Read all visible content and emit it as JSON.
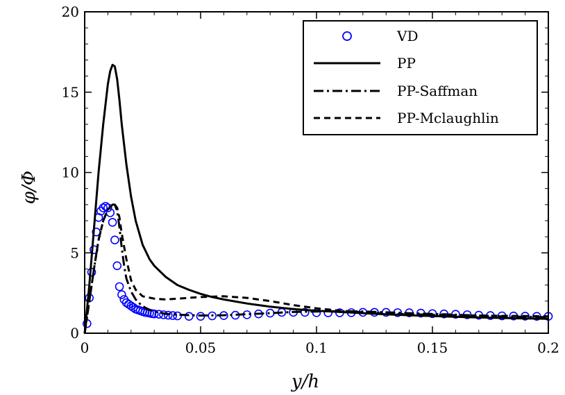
{
  "chart_data": {
    "type": "line",
    "title": "",
    "xlabel": "y/h",
    "ylabel": "φ/Φ",
    "xlim": [
      0,
      0.2
    ],
    "ylim": [
      0,
      20
    ],
    "x_ticks": [
      0,
      0.05,
      0.1,
      0.15,
      0.2
    ],
    "x_tick_labels": [
      "0",
      "0.05",
      "0.1",
      "0.15",
      "0.2"
    ],
    "y_ticks": [
      0,
      5,
      10,
      15,
      20
    ],
    "y_tick_labels": [
      "0",
      "5",
      "10",
      "15",
      "20"
    ],
    "grid": false,
    "legend_position": "top-right",
    "series": [
      {
        "name": "VD",
        "style": "markers-circle-open",
        "color": "#0000ff",
        "x": [
          0.001,
          0.002,
          0.003,
          0.004,
          0.005,
          0.006,
          0.007,
          0.008,
          0.009,
          0.01,
          0.011,
          0.012,
          0.013,
          0.014,
          0.015,
          0.016,
          0.017,
          0.018,
          0.019,
          0.02,
          0.021,
          0.022,
          0.023,
          0.024,
          0.025,
          0.026,
          0.027,
          0.028,
          0.029,
          0.03,
          0.032,
          0.034,
          0.036,
          0.038,
          0.04,
          0.045,
          0.05,
          0.055,
          0.06,
          0.065,
          0.07,
          0.075,
          0.08,
          0.085,
          0.09,
          0.095,
          0.1,
          0.105,
          0.11,
          0.115,
          0.12,
          0.125,
          0.13,
          0.135,
          0.14,
          0.145,
          0.15,
          0.155,
          0.16,
          0.165,
          0.17,
          0.175,
          0.18,
          0.185,
          0.19,
          0.195,
          0.2
        ],
        "y": [
          0.6,
          2.2,
          3.8,
          5.2,
          6.3,
          7.2,
          7.6,
          7.8,
          7.9,
          7.8,
          7.5,
          6.9,
          5.8,
          4.2,
          2.9,
          2.4,
          2.1,
          1.9,
          1.8,
          1.7,
          1.6,
          1.5,
          1.45,
          1.4,
          1.35,
          1.3,
          1.28,
          1.25,
          1.22,
          1.2,
          1.18,
          1.15,
          1.12,
          1.1,
          1.08,
          1.05,
          1.05,
          1.08,
          1.1,
          1.12,
          1.15,
          1.2,
          1.25,
          1.3,
          1.3,
          1.3,
          1.28,
          1.27,
          1.27,
          1.28,
          1.3,
          1.3,
          1.3,
          1.28,
          1.27,
          1.25,
          1.22,
          1.2,
          1.18,
          1.15,
          1.12,
          1.1,
          1.08,
          1.07,
          1.06,
          1.05,
          1.05
        ]
      },
      {
        "name": "PP",
        "style": "solid",
        "color": "#000000",
        "x": [
          0,
          0.002,
          0.004,
          0.006,
          0.008,
          0.01,
          0.011,
          0.012,
          0.013,
          0.014,
          0.015,
          0.016,
          0.018,
          0.02,
          0.022,
          0.025,
          0.028,
          0.03,
          0.035,
          0.04,
          0.045,
          0.05,
          0.055,
          0.06,
          0.07,
          0.08,
          0.09,
          0.1,
          0.11,
          0.12,
          0.13,
          0.14,
          0.15,
          0.16,
          0.17,
          0.18,
          0.19,
          0.2
        ],
        "y": [
          0,
          3.0,
          6.5,
          10.0,
          13.0,
          15.5,
          16.3,
          16.7,
          16.6,
          15.8,
          14.5,
          13.0,
          10.5,
          8.5,
          7.0,
          5.5,
          4.6,
          4.2,
          3.5,
          3.0,
          2.7,
          2.45,
          2.25,
          2.1,
          1.85,
          1.65,
          1.5,
          1.4,
          1.32,
          1.25,
          1.18,
          1.12,
          1.07,
          1.02,
          0.98,
          0.95,
          0.92,
          0.9
        ]
      },
      {
        "name": "PP-Saffman",
        "style": "dashdot",
        "color": "#000000",
        "x": [
          0,
          0.002,
          0.004,
          0.006,
          0.008,
          0.01,
          0.012,
          0.013,
          0.014,
          0.015,
          0.016,
          0.017,
          0.018,
          0.02,
          0.022,
          0.024,
          0.026,
          0.028,
          0.03,
          0.035,
          0.04,
          0.05,
          0.06,
          0.07,
          0.08,
          0.09,
          0.1,
          0.11,
          0.12,
          0.13,
          0.14,
          0.15,
          0.16,
          0.17,
          0.18,
          0.19,
          0.2
        ],
        "y": [
          0,
          2.0,
          4.0,
          5.8,
          7.0,
          7.7,
          8.0,
          8.0,
          7.6,
          6.6,
          5.3,
          4.2,
          3.4,
          2.6,
          2.1,
          1.8,
          1.6,
          1.45,
          1.35,
          1.2,
          1.15,
          1.1,
          1.12,
          1.18,
          1.25,
          1.32,
          1.35,
          1.37,
          1.35,
          1.3,
          1.25,
          1.2,
          1.15,
          1.1,
          1.05,
          1.02,
          1.0
        ]
      },
      {
        "name": "PP-Mclaughlin",
        "style": "dashed",
        "color": "#000000",
        "x": [
          0,
          0.002,
          0.004,
          0.006,
          0.008,
          0.01,
          0.012,
          0.013,
          0.014,
          0.015,
          0.016,
          0.018,
          0.02,
          0.022,
          0.025,
          0.03,
          0.035,
          0.04,
          0.05,
          0.06,
          0.07,
          0.08,
          0.09,
          0.1,
          0.11,
          0.12,
          0.13,
          0.14,
          0.15,
          0.16,
          0.17,
          0.18,
          0.19,
          0.2
        ],
        "y": [
          0,
          2.0,
          4.0,
          5.8,
          7.0,
          7.7,
          8.0,
          8.0,
          7.8,
          7.2,
          6.2,
          4.6,
          3.3,
          2.7,
          2.3,
          2.15,
          2.1,
          2.15,
          2.25,
          2.3,
          2.2,
          2.0,
          1.75,
          1.55,
          1.4,
          1.3,
          1.22,
          1.18,
          1.15,
          1.12,
          1.1,
          1.08,
          1.07,
          1.05
        ]
      }
    ]
  }
}
